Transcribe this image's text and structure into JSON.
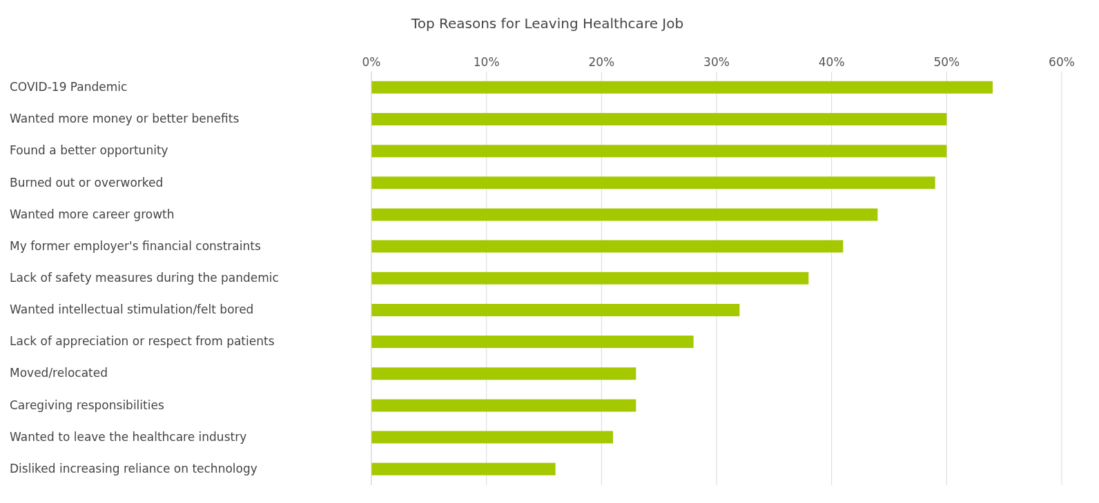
{
  "chart_data": {
    "type": "bar",
    "orientation": "horizontal",
    "title": "Top Reasons for Leaving Healthcare Job",
    "categories": [
      "COVID-19 Pandemic",
      "Wanted more money or better benefits",
      "Found a better opportunity",
      "Burned out or overworked",
      "Wanted more career growth",
      "My former employer's financial constraints",
      "Lack of safety measures during the pandemic",
      "Wanted intellectual stimulation/felt bored",
      "Lack of appreciation or respect from patients",
      "Moved/relocated",
      "Caregiving responsibilities",
      "Wanted to leave the healthcare industry",
      "Disliked increasing reliance on technology"
    ],
    "values": [
      54,
      50,
      50,
      49,
      44,
      41,
      38,
      32,
      28,
      23,
      23,
      21,
      16
    ],
    "color": "#a5c900",
    "xlim": [
      0,
      60
    ],
    "xticks": [
      {
        "value": 0,
        "label": "0%"
      },
      {
        "value": 10,
        "label": "10%"
      },
      {
        "value": 20,
        "label": "20%"
      },
      {
        "value": 30,
        "label": "30%"
      },
      {
        "value": 40,
        "label": "40%"
      },
      {
        "value": 50,
        "label": "50%"
      },
      {
        "value": 60,
        "label": "60%"
      }
    ],
    "grid": "x"
  }
}
